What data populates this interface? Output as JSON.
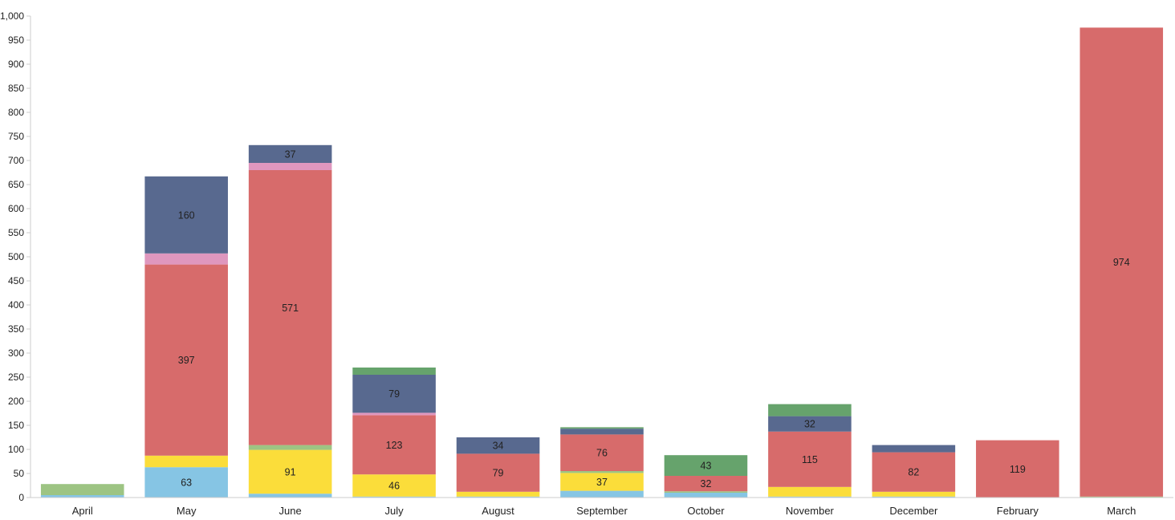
{
  "chart_data": {
    "type": "bar",
    "stacked": true,
    "categories": [
      "April",
      "May",
      "June",
      "July",
      "August",
      "September",
      "October",
      "November",
      "December",
      "February",
      "March"
    ],
    "ylim": [
      0,
      1000
    ],
    "yticks": [
      0,
      50,
      100,
      150,
      200,
      250,
      300,
      350,
      400,
      450,
      500,
      550,
      600,
      650,
      700,
      750,
      800,
      850,
      900,
      950,
      1000
    ],
    "ytick_labels": [
      "0",
      "50",
      "100",
      "150",
      "200",
      "250",
      "300",
      "350",
      "400",
      "450",
      "500",
      "550",
      "600",
      "650",
      "700",
      "750",
      "800",
      "850",
      "900",
      "950",
      "1,000"
    ],
    "grid": false,
    "legend": "none",
    "series": [
      {
        "color": "#86c5e4",
        "values": [
          5,
          63,
          8,
          2,
          2,
          14,
          10,
          2,
          2,
          0,
          0
        ],
        "labels": [
          "",
          "63",
          "",
          "",
          "",
          "",
          "",
          "",
          "",
          "",
          ""
        ]
      },
      {
        "color": "#fbdd3a",
        "values": [
          0,
          24,
          91,
          46,
          10,
          37,
          0,
          20,
          10,
          0,
          0
        ],
        "labels": [
          "",
          "",
          "91",
          "46",
          "",
          "37",
          "",
          "",
          "",
          "",
          ""
        ]
      },
      {
        "color": "#9dc483",
        "values": [
          23,
          0,
          10,
          0,
          0,
          4,
          3,
          0,
          0,
          0,
          2
        ],
        "labels": [
          "",
          "",
          "",
          "",
          "",
          "",
          "",
          "",
          "",
          "",
          ""
        ]
      },
      {
        "color": "#d76b6b",
        "values": [
          0,
          397,
          571,
          123,
          79,
          76,
          32,
          115,
          82,
          119,
          974
        ],
        "labels": [
          "",
          "397",
          "571",
          "123",
          "79",
          "76",
          "32",
          "115",
          "82",
          "119",
          "974"
        ]
      },
      {
        "color": "#df97be",
        "values": [
          0,
          23,
          15,
          5,
          0,
          0,
          0,
          0,
          0,
          0,
          0
        ],
        "labels": [
          "",
          "",
          "",
          "",
          "",
          "",
          "",
          "",
          "",
          "",
          ""
        ]
      },
      {
        "color": "#58698f",
        "values": [
          0,
          160,
          37,
          79,
          34,
          12,
          0,
          32,
          15,
          0,
          0
        ],
        "labels": [
          "",
          "160",
          "37",
          "79",
          "34",
          "",
          "",
          "32",
          "",
          "",
          ""
        ]
      },
      {
        "color": "#66a36c",
        "values": [
          0,
          0,
          0,
          15,
          0,
          3,
          43,
          25,
          0,
          0,
          0
        ],
        "labels": [
          "",
          "",
          "",
          "",
          "",
          "",
          "43",
          "",
          "",
          "",
          ""
        ]
      }
    ]
  }
}
